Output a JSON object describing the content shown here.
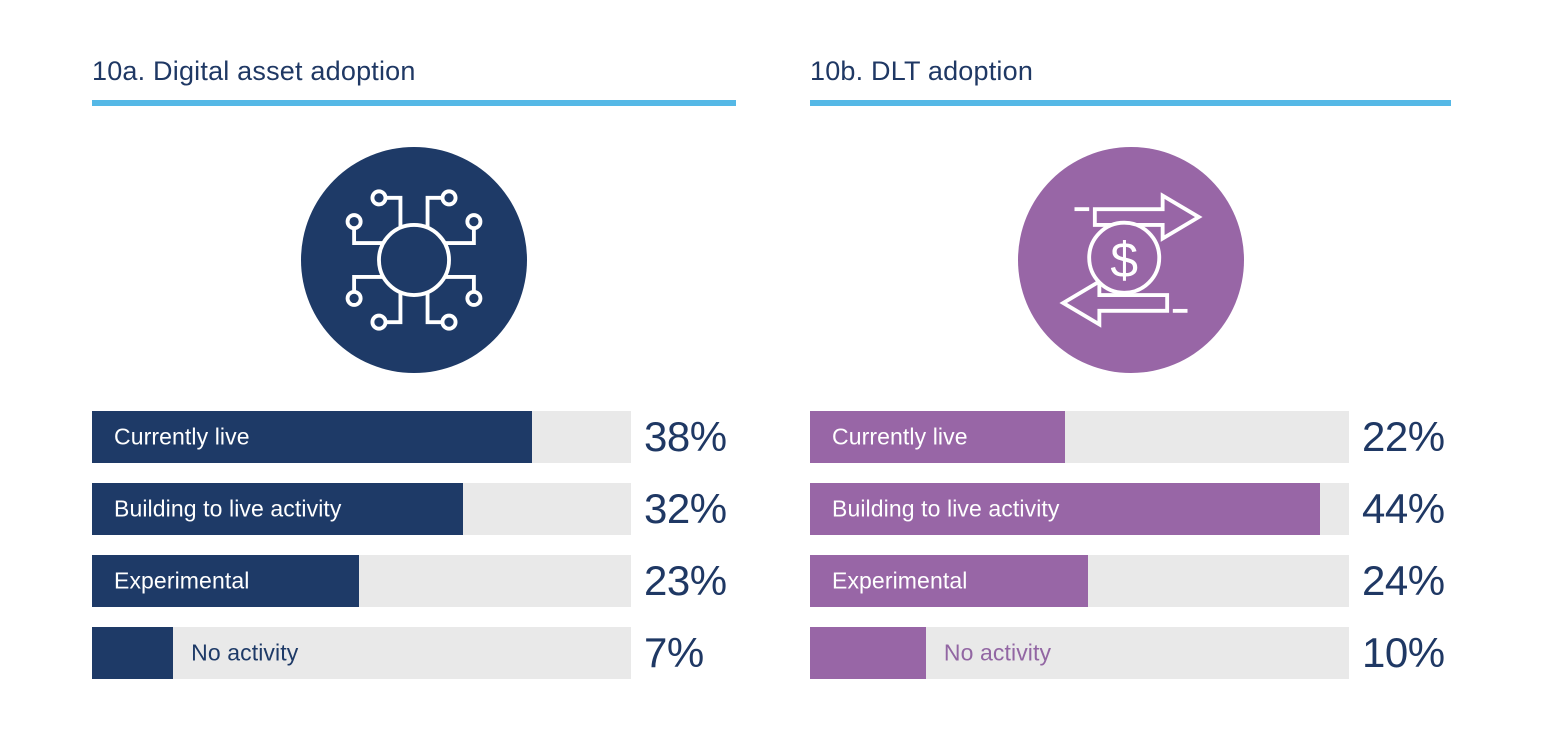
{
  "page": {
    "background": "#FFFFFF",
    "title_color": "#1F3864",
    "accent_underline_color": "#55B8E6"
  },
  "chart_data": [
    {
      "type": "bar",
      "orientation": "horizontal",
      "title": "10a. Digital asset adoption",
      "icon": "digital-asset-network-icon",
      "categories": [
        "Currently live",
        "Building to live activity",
        "Experimental",
        "No activity"
      ],
      "values": [
        38,
        32,
        23,
        7
      ],
      "value_labels": [
        "38%",
        "32%",
        "23%",
        "7%"
      ],
      "label_inside": [
        true,
        true,
        true,
        false
      ],
      "unit": "%",
      "axis_max_pct": 46.5,
      "grid": false,
      "legend": "none",
      "bar_color": "#1E3A67",
      "track_color": "#E9E9E9",
      "value_text_color": "#1F3864",
      "inside_label_color": "#FFFFFF",
      "outside_label_color": "#1E3A67",
      "icon_bg_color": "#1E3A67"
    },
    {
      "type": "bar",
      "orientation": "horizontal",
      "title": "10b. DLT adoption",
      "icon": "dlt-money-transfer-icon",
      "categories": [
        "Currently live",
        "Building to live activity",
        "Experimental",
        "No activity"
      ],
      "values": [
        22,
        44,
        24,
        10
      ],
      "value_labels": [
        "22%",
        "44%",
        "24%",
        "10%"
      ],
      "label_inside": [
        true,
        true,
        true,
        false
      ],
      "unit": "%",
      "axis_max_pct": 46.5,
      "grid": false,
      "legend": "none",
      "bar_color": "#9866A6",
      "track_color": "#E9E9E9",
      "value_text_color": "#1F3864",
      "inside_label_color": "#FFFFFF",
      "outside_label_color": "#9266A3",
      "icon_bg_color": "#9866A6"
    }
  ]
}
